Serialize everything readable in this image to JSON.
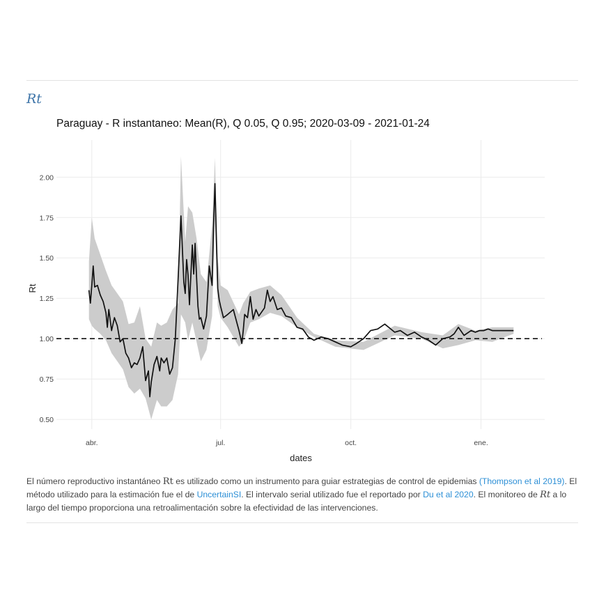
{
  "section": {
    "heading": "Rt"
  },
  "chart_data": {
    "type": "line",
    "title": "Paraguay - R instantaneo: Mean(R), Q 0.05, Q 0.95;  2020-03-09 - 2021-01-24",
    "xlabel": "dates",
    "ylabel": "Rt",
    "xlim": [
      "2020-03-07",
      "2021-02-15"
    ],
    "ylim": [
      0.44,
      2.23
    ],
    "x_ticks": [
      {
        "date": "2020-04-01",
        "label": "abr."
      },
      {
        "date": "2020-07-01",
        "label": "jul."
      },
      {
        "date": "2020-10-01",
        "label": "oct."
      },
      {
        "date": "2021-01-01",
        "label": "ene."
      }
    ],
    "y_ticks": [
      0.5,
      0.75,
      1.0,
      1.25,
      1.5,
      1.75,
      2.0
    ],
    "y_tick_labels": [
      "0.50",
      "0.75",
      "1.00",
      "1.25",
      "1.50",
      "1.75",
      "2.00"
    ],
    "reference_line": {
      "y": 1.0,
      "style": "dashed"
    },
    "grid": true,
    "colors": {
      "line": "#111111",
      "band": "#cccccc",
      "grid": "#ebebeb"
    },
    "series": [
      {
        "role": "mean",
        "x": [
          "2020-03-30",
          "2020-03-31",
          "2020-04-01",
          "2020-04-02",
          "2020-04-03",
          "2020-04-05",
          "2020-04-07",
          "2020-04-09",
          "2020-04-11",
          "2020-04-12",
          "2020-04-13",
          "2020-04-15",
          "2020-04-17",
          "2020-04-19",
          "2020-04-21",
          "2020-04-23",
          "2020-04-25",
          "2020-04-27",
          "2020-04-29",
          "2020-05-01",
          "2020-05-03",
          "2020-05-05",
          "2020-05-07",
          "2020-05-09",
          "2020-05-11",
          "2020-05-12",
          "2020-05-13",
          "2020-05-15",
          "2020-05-17",
          "2020-05-19",
          "2020-05-20",
          "2020-05-22",
          "2020-05-24",
          "2020-05-26",
          "2020-05-28",
          "2020-05-30",
          "2020-06-01",
          "2020-06-03",
          "2020-06-05",
          "2020-06-06",
          "2020-06-07",
          "2020-06-08",
          "2020-06-09",
          "2020-06-11",
          "2020-06-12",
          "2020-06-13",
          "2020-06-14",
          "2020-06-15",
          "2020-06-16",
          "2020-06-17",
          "2020-06-19",
          "2020-06-21",
          "2020-06-23",
          "2020-06-25",
          "2020-06-26",
          "2020-06-27",
          "2020-06-28",
          "2020-06-29",
          "2020-06-30",
          "2020-07-01",
          "2020-07-03",
          "2020-07-06",
          "2020-07-10",
          "2020-07-14",
          "2020-07-16",
          "2020-07-17",
          "2020-07-18",
          "2020-07-20",
          "2020-07-22",
          "2020-07-24",
          "2020-07-26",
          "2020-07-28",
          "2020-08-01",
          "2020-08-03",
          "2020-08-05",
          "2020-08-07",
          "2020-08-10",
          "2020-08-13",
          "2020-08-16",
          "2020-08-20",
          "2020-08-24",
          "2020-08-28",
          "2020-09-01",
          "2020-09-05",
          "2020-09-10",
          "2020-09-15",
          "2020-09-20",
          "2020-09-25",
          "2020-10-01",
          "2020-10-05",
          "2020-10-10",
          "2020-10-15",
          "2020-10-20",
          "2020-10-25",
          "2020-11-01",
          "2020-11-05",
          "2020-11-10",
          "2020-11-15",
          "2020-11-20",
          "2020-11-25",
          "2020-11-30",
          "2020-12-05",
          "2020-12-10",
          "2020-12-13",
          "2020-12-16",
          "2020-12-20",
          "2020-12-25",
          "2020-12-28",
          "2020-12-31",
          "2021-01-03",
          "2021-01-06",
          "2021-01-09",
          "2021-01-12",
          "2021-01-14",
          "2021-01-16",
          "2021-01-18",
          "2021-01-20",
          "2021-01-22",
          "2021-01-24"
        ],
        "values": [
          1.3,
          1.22,
          1.33,
          1.45,
          1.32,
          1.33,
          1.27,
          1.23,
          1.16,
          1.07,
          1.18,
          1.05,
          1.13,
          1.08,
          0.98,
          1.0,
          0.91,
          0.88,
          0.82,
          0.85,
          0.84,
          0.88,
          0.95,
          0.74,
          0.8,
          0.64,
          0.73,
          0.84,
          0.89,
          0.8,
          0.88,
          0.85,
          0.88,
          0.78,
          0.82,
          1.0,
          1.37,
          1.76,
          1.35,
          1.28,
          1.49,
          1.39,
          1.21,
          1.58,
          1.4,
          1.59,
          1.38,
          1.2,
          1.12,
          1.13,
          1.06,
          1.14,
          1.45,
          1.33,
          1.69,
          1.96,
          1.62,
          1.31,
          1.24,
          1.2,
          1.13,
          1.15,
          1.18,
          1.05,
          0.97,
          1.05,
          1.15,
          1.13,
          1.26,
          1.12,
          1.18,
          1.14,
          1.19,
          1.3,
          1.23,
          1.26,
          1.18,
          1.19,
          1.14,
          1.13,
          1.07,
          1.06,
          1.01,
          0.99,
          1.01,
          1.0,
          0.98,
          0.96,
          0.95,
          0.97,
          1.0,
          1.05,
          1.06,
          1.09,
          1.04,
          1.05,
          1.02,
          1.04,
          1.01,
          0.99,
          0.96,
          1.0,
          1.01,
          1.03,
          1.07,
          1.02,
          1.05,
          1.04,
          1.05,
          1.05,
          1.06,
          1.05,
          1.05,
          1.05,
          1.05,
          1.05,
          1.05,
          1.05,
          1.05
        ]
      },
      {
        "role": "q05-q95-band",
        "x": [
          "2020-03-30",
          "2020-04-01",
          "2020-04-03",
          "2020-04-07",
          "2020-04-11",
          "2020-04-15",
          "2020-04-19",
          "2020-04-23",
          "2020-04-27",
          "2020-05-01",
          "2020-05-05",
          "2020-05-09",
          "2020-05-13",
          "2020-05-17",
          "2020-05-20",
          "2020-05-24",
          "2020-05-28",
          "2020-06-01",
          "2020-06-03",
          "2020-06-06",
          "2020-06-08",
          "2020-06-11",
          "2020-06-14",
          "2020-06-17",
          "2020-06-21",
          "2020-06-25",
          "2020-06-27",
          "2020-06-29",
          "2020-07-01",
          "2020-07-06",
          "2020-07-14",
          "2020-07-17",
          "2020-07-22",
          "2020-07-28",
          "2020-08-05",
          "2020-08-13",
          "2020-08-24",
          "2020-09-05",
          "2020-09-20",
          "2020-10-10",
          "2020-11-01",
          "2020-11-20",
          "2020-12-05",
          "2020-12-16",
          "2020-12-28",
          "2021-01-09",
          "2021-01-24"
        ],
        "lower": [
          1.12,
          1.08,
          1.06,
          1.03,
          0.99,
          0.91,
          0.86,
          0.81,
          0.7,
          0.66,
          0.69,
          0.63,
          0.5,
          0.62,
          0.58,
          0.58,
          0.62,
          0.78,
          1.15,
          1.1,
          0.99,
          1.1,
          0.98,
          0.86,
          0.93,
          1.14,
          1.75,
          1.2,
          1.13,
          1.07,
          0.95,
          0.98,
          1.1,
          1.12,
          1.16,
          1.14,
          1.07,
          1.01,
          0.95,
          0.93,
          1.02,
          1.0,
          0.94,
          0.96,
          0.99,
          0.98,
          1.03
        ],
        "upper": [
          1.48,
          1.75,
          1.62,
          1.52,
          1.42,
          1.33,
          1.28,
          1.23,
          1.09,
          1.1,
          1.2,
          1.0,
          0.95,
          1.1,
          1.08,
          1.1,
          1.18,
          1.22,
          2.13,
          1.6,
          1.82,
          1.78,
          1.62,
          1.4,
          1.35,
          1.7,
          2.12,
          1.5,
          1.33,
          1.3,
          1.15,
          1.22,
          1.29,
          1.31,
          1.33,
          1.27,
          1.13,
          1.03,
          0.99,
          0.98,
          1.08,
          1.04,
          1.02,
          1.09,
          1.05,
          1.07,
          1.07
        ]
      }
    ]
  },
  "caption": {
    "p1": "El número reproductivo instantáneo ",
    "rt_regular": "R",
    "rt_italic": "t",
    "p2": " es utilizado como un instrumento para guiar estrategias de control de epidemias ",
    "link1": "(Thompson et al 2019)",
    "p3": ". El método utilizado para la estimación fue el de ",
    "link2": "UncertainSI",
    "p4": ". El intervalo serial utilizado fue el reportado por ",
    "link3": "Du et al 2020",
    "p5": ". El monitoreo de ",
    "p6": " a lo largo del tiempo proporciona una retroalimentación sobre la efectividad de las intervenciones."
  }
}
